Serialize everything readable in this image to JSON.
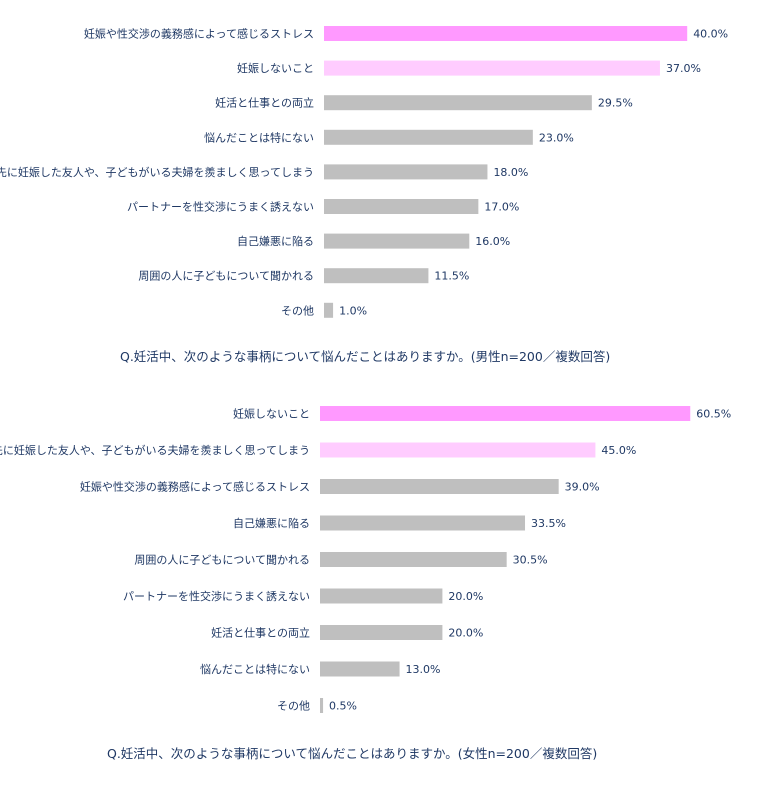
{
  "chart_data": [
    {
      "type": "bar",
      "orientation": "horizontal",
      "title": "Q.妊活中、次のような事柄について悩んだことはありますか。(男性n=200／複数回答)",
      "categories": [
        "妊娠や性交渉の義務感によって感じるストレス",
        "妊娠しないこと",
        "妊活と仕事との両立",
        "悩んだことは特にない",
        "先に妊娠した友人や、子どもがいる夫婦を羨ましく思ってしまう",
        "パートナーを性交渉にうまく誘えない",
        "自己嫌悪に陥る",
        "周囲の人に子どもについて聞かれる",
        "その他"
      ],
      "values": [
        40.0,
        37.0,
        29.5,
        23.0,
        18.0,
        17.0,
        16.0,
        11.5,
        1.0
      ],
      "labels": [
        "40.0%",
        "37.0%",
        "29.5%",
        "23.0%",
        "18.0%",
        "17.0%",
        "16.0%",
        "11.5%",
        "1.0%"
      ],
      "colors": [
        "#ff99ff",
        "#ffccff",
        "#bfbfbf",
        "#bfbfbf",
        "#bfbfbf",
        "#bfbfbf",
        "#bfbfbf",
        "#bfbfbf",
        "#bfbfbf"
      ],
      "grid": false,
      "legend": "none"
    },
    {
      "type": "bar",
      "orientation": "horizontal",
      "title": "Q.妊活中、次のような事柄について悩んだことはありますか。(女性n=200／複数回答)",
      "categories": [
        "妊娠しないこと",
        "先に妊娠した友人や、子どもがいる夫婦を羨ましく思ってしまう",
        "妊娠や性交渉の義務感によって感じるストレス",
        "自己嫌悪に陥る",
        "周囲の人に子どもについて聞かれる",
        "パートナーを性交渉にうまく誘えない",
        "妊活と仕事との両立",
        "悩んだことは特にない",
        "その他"
      ],
      "values": [
        60.5,
        45.0,
        39.0,
        33.5,
        30.5,
        20.0,
        20.0,
        13.0,
        0.5
      ],
      "labels": [
        "60.5%",
        "45.0%",
        "39.0%",
        "33.5%",
        "30.5%",
        "20.0%",
        "20.0%",
        "13.0%",
        "0.5%"
      ],
      "colors": [
        "#ff99ff",
        "#ffccff",
        "#bfbfbf",
        "#bfbfbf",
        "#bfbfbf",
        "#bfbfbf",
        "#bfbfbf",
        "#bfbfbf",
        "#bfbfbf"
      ],
      "grid": false,
      "legend": "none"
    }
  ]
}
